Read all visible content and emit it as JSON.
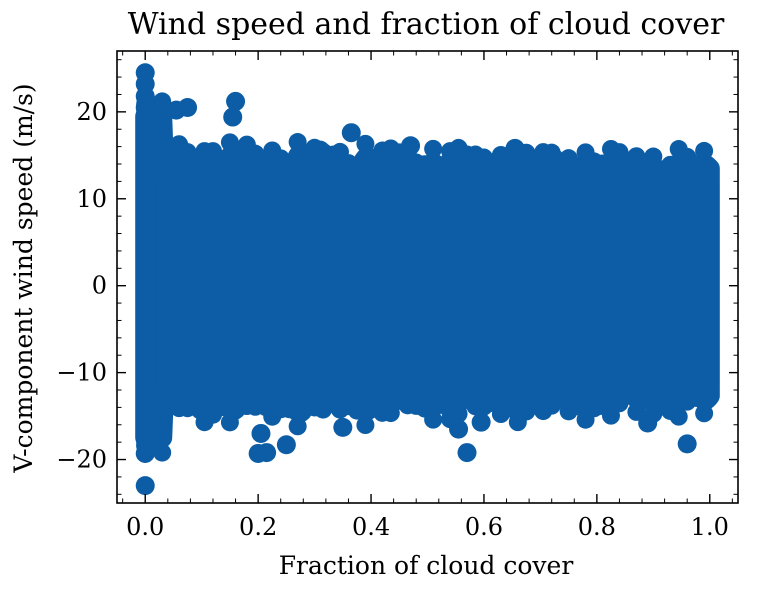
{
  "chart_data": {
    "type": "scatter",
    "title": "Wind speed and fraction of cloud cover",
    "xlabel": "Fraction of cloud cover",
    "ylabel": "V-component wind speed (m/s)",
    "xlim": [
      -0.05,
      1.05
    ],
    "ylim": [
      -25,
      27
    ],
    "xticks": [
      0.0,
      0.2,
      0.4,
      0.6,
      0.8,
      1.0
    ],
    "xtick_labels": [
      "0.0",
      "0.2",
      "0.4",
      "0.6",
      "0.8",
      "1.0"
    ],
    "yticks": [
      -20,
      -10,
      0,
      10,
      20
    ],
    "ytick_labels": [
      "−20",
      "−10",
      "0",
      "10",
      "20"
    ],
    "grid": false,
    "marker_color": "#0c5da5",
    "series": [
      {
        "description": "dense cloud of observations spanning x in [0,1], y roughly -16..16; outliers listed below",
        "points": [
          [
            0.0,
            24.5
          ],
          [
            0.0,
            23.2
          ],
          [
            0.0,
            21.8
          ],
          [
            0.0,
            20.5
          ],
          [
            0.0,
            -19.3
          ],
          [
            0.0,
            -23.0
          ],
          [
            0.16,
            21.2
          ],
          [
            0.155,
            19.4
          ],
          [
            0.075,
            20.5
          ],
          [
            0.055,
            20.2
          ],
          [
            0.365,
            17.6
          ],
          [
            0.2,
            -19.3
          ],
          [
            0.215,
            -19.2
          ],
          [
            0.25,
            -18.3
          ],
          [
            0.205,
            -17.0
          ],
          [
            0.57,
            -19.2
          ],
          [
            0.96,
            -18.2
          ],
          [
            0.35,
            -16.3
          ],
          [
            0.555,
            -16.5
          ],
          [
            0.595,
            -15.7
          ],
          [
            0.89,
            -15.8
          ],
          [
            0.47,
            16.1
          ],
          [
            0.31,
            15.6
          ],
          [
            0.655,
            15.8
          ]
        ]
      }
    ]
  }
}
